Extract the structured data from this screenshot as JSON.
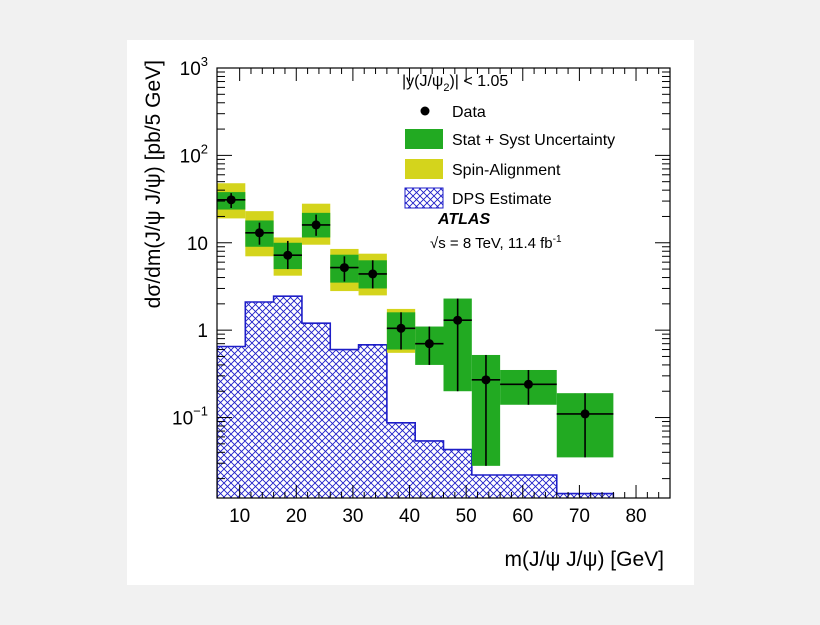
{
  "chart_data": {
    "type": "bar",
    "xlabel": "m(J/ψ J/ψ) [GeV]",
    "ylabel": "dσ/dm(J/ψ J/ψ) [pb/5 GeV]",
    "xlim": [
      6,
      86
    ],
    "ylim": [
      0.012,
      1000
    ],
    "yscale": "log",
    "x_ticks": [
      10,
      20,
      30,
      40,
      50,
      60,
      70,
      80
    ],
    "y_ticks": [
      {
        "value": 1000,
        "label": "10",
        "sup": "3"
      },
      {
        "value": 100,
        "label": "10",
        "sup": "2"
      },
      {
        "value": 10,
        "label": "10",
        "sup": ""
      },
      {
        "value": 1,
        "label": "1",
        "sup": ""
      },
      {
        "value": 0.1,
        "label": "10",
        "sup": "−1"
      }
    ],
    "legend": {
      "position": "top-right",
      "header_parts": [
        "|y(J/ψ",
        "2",
        ")| < 1.05"
      ],
      "entries": [
        {
          "name": "Data",
          "style": "marker"
        },
        {
          "name": "Stat + Syst Uncertainty",
          "style": "box",
          "color": "#22aa22"
        },
        {
          "name": "Spin-Alignment",
          "style": "box",
          "color": "#d4d41c"
        },
        {
          "name": "DPS Estimate",
          "style": "hatch",
          "color": "#1e1ec8"
        }
      ]
    },
    "annotations": {
      "experiment": "ATLAS",
      "energy_parts": [
        "√s = 8 TeV, 11.4 fb",
        "-1"
      ]
    },
    "series": [
      {
        "name": "Data",
        "points": [
          {
            "xlo": 6,
            "xhi": 11,
            "x": 8.5,
            "y": 31,
            "ylo": 25,
            "yhi": 37
          },
          {
            "xlo": 11,
            "xhi": 16,
            "x": 13.5,
            "y": 13,
            "ylo": 9.5,
            "yhi": 17
          },
          {
            "xlo": 16,
            "xhi": 21,
            "x": 18.5,
            "y": 7.2,
            "ylo": 5,
            "yhi": 10.5
          },
          {
            "xlo": 21,
            "xhi": 26,
            "x": 23.5,
            "y": 16,
            "ylo": 12,
            "yhi": 21
          },
          {
            "xlo": 26,
            "xhi": 31,
            "x": 28.5,
            "y": 5.2,
            "ylo": 3.6,
            "yhi": 7
          },
          {
            "xlo": 31,
            "xhi": 36,
            "x": 33.5,
            "y": 4.4,
            "ylo": 3,
            "yhi": 6.3
          },
          {
            "xlo": 36,
            "xhi": 41,
            "x": 38.5,
            "y": 1.05,
            "ylo": 0.6,
            "yhi": 1.6
          },
          {
            "xlo": 41,
            "xhi": 46,
            "x": 43.5,
            "y": 0.7,
            "ylo": 0.4,
            "yhi": 1.1
          },
          {
            "xlo": 46,
            "xhi": 51,
            "x": 48.5,
            "y": 1.3,
            "ylo": 0.2,
            "yhi": 2.3
          },
          {
            "xlo": 51,
            "xhi": 56,
            "x": 53.5,
            "y": 0.27,
            "ylo": 0.028,
            "yhi": 0.52
          },
          {
            "xlo": 56,
            "xhi": 66,
            "x": 61,
            "y": 0.24,
            "ylo": 0.14,
            "yhi": 0.35
          },
          {
            "xlo": 66,
            "xhi": 76,
            "x": 71,
            "y": 0.11,
            "ylo": 0.035,
            "yhi": 0.19
          }
        ]
      },
      {
        "name": "Stat + Syst Uncertainty",
        "boxes": [
          {
            "xlo": 6,
            "xhi": 11,
            "ylo": 24,
            "yhi": 38
          },
          {
            "xlo": 11,
            "xhi": 16,
            "ylo": 9,
            "yhi": 18
          },
          {
            "xlo": 16,
            "xhi": 21,
            "ylo": 5,
            "yhi": 10
          },
          {
            "xlo": 21,
            "xhi": 26,
            "ylo": 11.5,
            "yhi": 22
          },
          {
            "xlo": 26,
            "xhi": 31,
            "ylo": 3.5,
            "yhi": 7.3
          },
          {
            "xlo": 31,
            "xhi": 36,
            "ylo": 3,
            "yhi": 6.3
          },
          {
            "xlo": 36,
            "xhi": 41,
            "ylo": 0.6,
            "yhi": 1.6
          },
          {
            "xlo": 41,
            "xhi": 46,
            "ylo": 0.4,
            "yhi": 1.1
          },
          {
            "xlo": 46,
            "xhi": 51,
            "ylo": 0.2,
            "yhi": 2.3
          },
          {
            "xlo": 51,
            "xhi": 56,
            "ylo": 0.028,
            "yhi": 0.52
          },
          {
            "xlo": 56,
            "xhi": 66,
            "ylo": 0.14,
            "yhi": 0.35
          },
          {
            "xlo": 66,
            "xhi": 76,
            "ylo": 0.035,
            "yhi": 0.19
          }
        ]
      },
      {
        "name": "Spin-Alignment",
        "boxes": [
          {
            "xlo": 6,
            "xhi": 11,
            "ylo": 19,
            "yhi": 48
          },
          {
            "xlo": 11,
            "xhi": 16,
            "ylo": 7,
            "yhi": 23
          },
          {
            "xlo": 16,
            "xhi": 21,
            "ylo": 4.2,
            "yhi": 11.5
          },
          {
            "xlo": 21,
            "xhi": 26,
            "ylo": 9.5,
            "yhi": 28
          },
          {
            "xlo": 26,
            "xhi": 31,
            "ylo": 2.8,
            "yhi": 8.5
          },
          {
            "xlo": 31,
            "xhi": 36,
            "ylo": 2.5,
            "yhi": 7.5
          },
          {
            "xlo": 36,
            "xhi": 41,
            "ylo": 0.55,
            "yhi": 1.75
          }
        ]
      },
      {
        "name": "DPS Estimate",
        "bins": [
          {
            "xlo": 6,
            "xhi": 11,
            "y": 0.65
          },
          {
            "xlo": 11,
            "xhi": 16,
            "y": 2.1
          },
          {
            "xlo": 16,
            "xhi": 21,
            "y": 2.45
          },
          {
            "xlo": 21,
            "xhi": 26,
            "y": 1.2
          },
          {
            "xlo": 26,
            "xhi": 31,
            "y": 0.6
          },
          {
            "xlo": 31,
            "xhi": 36,
            "y": 0.68
          },
          {
            "xlo": 36,
            "xhi": 41,
            "y": 0.087
          },
          {
            "xlo": 41,
            "xhi": 46,
            "y": 0.054
          },
          {
            "xlo": 46,
            "xhi": 51,
            "y": 0.043
          },
          {
            "xlo": 51,
            "xhi": 56,
            "y": 0.022
          },
          {
            "xlo": 56,
            "xhi": 66,
            "y": 0.022
          },
          {
            "xlo": 66,
            "xhi": 76,
            "y": 0.0135
          }
        ]
      }
    ]
  }
}
